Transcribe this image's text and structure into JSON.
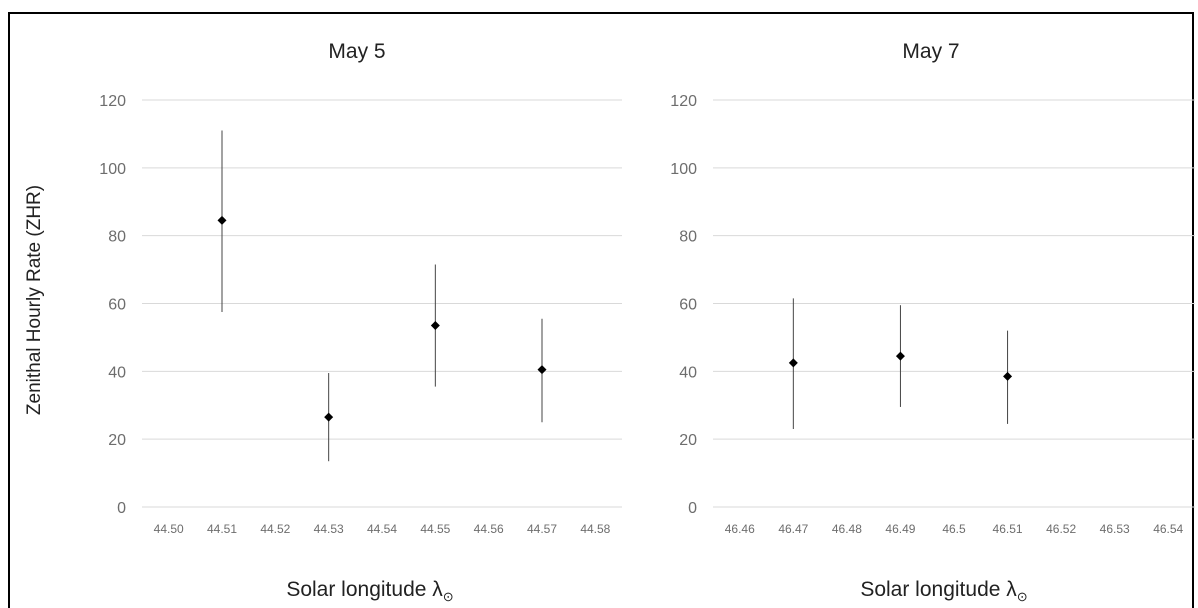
{
  "figure": {
    "shared_ylabel": "Zenithal Hourly Rate (ZHR)"
  },
  "chart_data": [
    {
      "type": "scatter",
      "title": "May 5",
      "xlabel": "Solar longitude λ",
      "xlabel_symbol": "⊙",
      "ylabel": "Zenithal Hourly Rate (ZHR)",
      "xlim": [
        44.495,
        44.585
      ],
      "ylim": [
        0,
        120
      ],
      "yticks": [
        0,
        20,
        40,
        60,
        80,
        100,
        120
      ],
      "xticks": [
        "44.50",
        "44.51",
        "44.52",
        "44.53",
        "44.54",
        "44.55",
        "44.56",
        "44.57",
        "44.58"
      ],
      "xtick_values": [
        44.5,
        44.51,
        44.52,
        44.53,
        44.54,
        44.55,
        44.56,
        44.57,
        44.58
      ],
      "grid": true,
      "points": [
        {
          "x": 44.51,
          "y": 84.5,
          "err_low": 57.5,
          "err_high": 111
        },
        {
          "x": 44.53,
          "y": 26.5,
          "err_low": 13.5,
          "err_high": 39.5
        },
        {
          "x": 44.55,
          "y": 53.5,
          "err_low": 35.5,
          "err_high": 71.5
        },
        {
          "x": 44.57,
          "y": 40.5,
          "err_low": 25,
          "err_high": 55.5
        }
      ]
    },
    {
      "type": "scatter",
      "title": "May 7",
      "xlabel": "Solar longitude λ",
      "xlabel_symbol": "⊙",
      "ylabel": "",
      "xlim": [
        46.455,
        46.545
      ],
      "ylim": [
        0,
        120
      ],
      "yticks": [
        0,
        20,
        40,
        60,
        80,
        100,
        120
      ],
      "xticks": [
        "46.46",
        "46.47",
        "46.48",
        "46.49",
        "46.5",
        "46.51",
        "46.52",
        "46.53",
        "46.54"
      ],
      "xtick_values": [
        46.46,
        46.47,
        46.48,
        46.49,
        46.5,
        46.51,
        46.52,
        46.53,
        46.54
      ],
      "grid": true,
      "points": [
        {
          "x": 46.47,
          "y": 42.5,
          "err_low": 23,
          "err_high": 61.5
        },
        {
          "x": 46.49,
          "y": 44.5,
          "err_low": 29.5,
          "err_high": 59.5
        },
        {
          "x": 46.51,
          "y": 38.5,
          "err_low": 24.5,
          "err_high": 52
        }
      ]
    }
  ]
}
